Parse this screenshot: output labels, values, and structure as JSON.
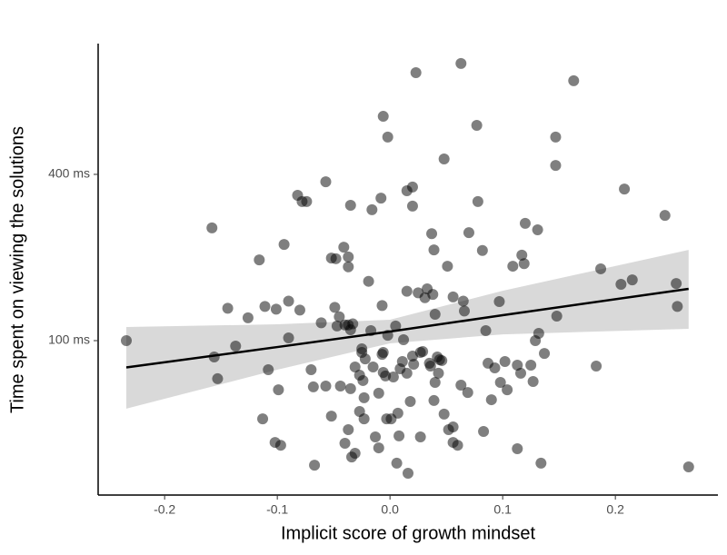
{
  "chart_data": {
    "type": "scatter",
    "xlabel": "Implicit score of growth mindset",
    "ylabel": "Time spent on viewing the solutions",
    "xlim": [
      -0.259,
      0.291
    ],
    "ylim": [
      27.6,
      1190
    ],
    "ylog": true,
    "xticks": [
      -0.2,
      -0.1,
      {
        "value": 0,
        "label": "0.0"
      },
      0.1,
      0.2
    ],
    "yticks": [
      {
        "value": 100,
        "label": "100 ms"
      },
      {
        "value": 400,
        "label": "400 ms"
      }
    ],
    "color": "#000000",
    "x": [
      -0.234,
      -0.158,
      -0.156,
      -0.153,
      -0.144,
      -0.137,
      -0.126,
      -0.116,
      -0.113,
      -0.111,
      -0.108,
      -0.102,
      -0.097,
      -0.099,
      -0.101,
      -0.094,
      -0.09,
      -0.09,
      -0.082,
      -0.08,
      -0.078,
      -0.074,
      -0.07,
      -0.068,
      -0.067,
      -0.061,
      -0.057,
      -0.057,
      -0.052,
      -0.052,
      -0.048,
      -0.049,
      -0.045,
      -0.047,
      -0.044,
      -0.041,
      -0.04,
      -0.037,
      -0.037,
      -0.037,
      -0.035,
      -0.035,
      -0.04,
      -0.037,
      -0.035,
      -0.033,
      -0.034,
      -0.031,
      -0.031,
      -0.027,
      -0.025,
      -0.025,
      -0.027,
      -0.024,
      -0.023,
      -0.023,
      -0.022,
      -0.019,
      -0.017,
      -0.016,
      -0.015,
      -0.013,
      -0.01,
      -0.01,
      -0.007,
      -0.008,
      -0.006,
      -0.006,
      -0.006,
      -0.004,
      -0.002,
      -0.003,
      -0.002,
      0.001,
      0.003,
      0.005,
      0.006,
      0.007,
      0.008,
      0.009,
      0.011,
      0.012,
      0.015,
      0.015,
      0.015,
      0.016,
      0.018,
      0.02,
      0.02,
      0.02,
      0.021,
      0.023,
      0.025,
      0.027,
      0.027,
      0.029,
      0.031,
      0.033,
      0.035,
      0.036,
      0.038,
      0.037,
      0.039,
      0.039,
      0.04,
      0.042,
      0.043,
      0.044,
      0.046,
      0.04,
      0.048,
      0.048,
      0.051,
      0.052,
      0.056,
      0.056,
      0.056,
      0.06,
      0.063,
      0.063,
      0.065,
      0.066,
      0.069,
      0.07,
      0.077,
      0.078,
      0.082,
      0.083,
      0.085,
      0.087,
      0.09,
      0.093,
      0.097,
      0.098,
      0.102,
      0.104,
      0.109,
      0.113,
      0.113,
      0.116,
      0.117,
      0.119,
      0.12,
      0.125,
      0.127,
      0.129,
      0.131,
      0.132,
      0.134,
      0.137,
      0.147,
      0.147,
      0.148,
      0.163,
      0.183,
      0.187,
      0.205,
      0.208,
      0.215,
      0.244,
      0.254,
      0.255,
      0.265,
      -0.007
    ],
    "y": [
      100,
      256,
      87.3,
      72.8,
      131,
      95.6,
      121,
      196,
      52.1,
      133,
      78.5,
      42.8,
      41.8,
      66.4,
      130,
      223,
      139,
      102.3,
      336,
      129,
      319,
      319,
      78.5,
      68,
      35.4,
      116,
      68.5,
      376,
      53.3,
      199,
      198,
      132,
      122,
      113,
      68.5,
      218,
      114,
      201,
      185,
      114,
      309,
      109.5,
      42.5,
      47.6,
      67,
      115,
      37.9,
      39.1,
      80.3,
      75,
      93.4,
      90.6,
      55.4,
      71.7,
      62.1,
      52.1,
      85.9,
      164,
      108.7,
      298,
      80.3,
      44.8,
      64.5,
      40.9,
      134,
      328,
      649,
      90.6,
      76.7,
      74.5,
      546,
      52.1,
      104.6,
      52.1,
      73.9,
      113,
      36,
      54.6,
      45.2,
      79.1,
      84,
      100.8,
      76.2,
      349,
      151,
      33.1,
      60.2,
      87.9,
      307,
      360,
      82.1,
      934,
      149,
      44.8,
      90.6,
      91.3,
      143,
      154,
      82.8,
      80.9,
      147,
      244,
      213,
      60.7,
      70.6,
      87.3,
      76.2,
      85.3,
      84.7,
      124.6,
      54.2,
      455,
      186,
      47.6,
      48.7,
      144,
      42.8,
      41.8,
      1008,
      69,
      139,
      128,
      64.9,
      246,
      602,
      319,
      212,
      46.9,
      108.7,
      82.8,
      61.1,
      79.7,
      138.5,
      70.6,
      84,
      66.4,
      186,
      40.6,
      81.5,
      76.2,
      204,
      190,
      266,
      81.5,
      71.1,
      100,
      252,
      106.3,
      36,
      89.9,
      546,
      431,
      122.7,
      873,
      80.9,
      182,
      160,
      354,
      166,
      284,
      161,
      133,
      34.9,
      89.2
    ],
    "fit": {
      "color": "#000000",
      "band_color": "#d9d9d9",
      "x": [
        -0.234,
        -0.1,
        0,
        0.1,
        0.265
      ],
      "y": [
        80,
        94.8,
        107.9,
        123.6,
        154
      ],
      "ci_lower": [
        56.7,
        78.5,
        97.8,
        105.4,
        110.4
      ],
      "ci_upper": [
        112,
        114.6,
        119,
        151.6,
        213
      ]
    }
  }
}
